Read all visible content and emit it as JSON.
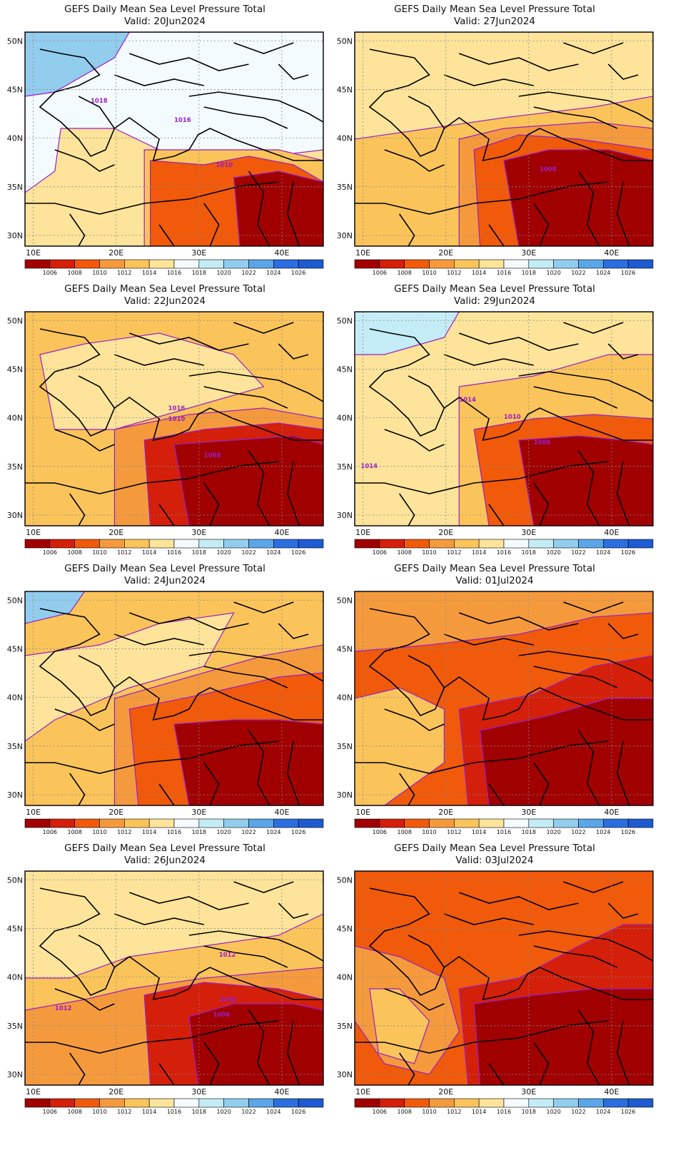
{
  "colorbar": {
    "labels": [
      "1006",
      "1008",
      "1010",
      "1012",
      "1014",
      "1016",
      "1018",
      "1020",
      "1022",
      "1024",
      "1026"
    ],
    "colors": [
      "#a10000",
      "#d41f0a",
      "#f05a0a",
      "#f59a3c",
      "#fbc45a",
      "#fde49a",
      "#f4fbff",
      "#c4ecf6",
      "#92cdee",
      "#5aa6e8",
      "#2a6ee0",
      "#1e5ad0"
    ]
  },
  "axes": {
    "lat_labels": [
      "50N",
      "45N",
      "40N",
      "35N",
      "30N"
    ],
    "lon_labels": [
      "10E",
      "20E",
      "30E",
      "40E"
    ]
  },
  "contour_line_color": "#9a1fc8",
  "panels": [
    {
      "title": "GEFS Daily Mean Sea Level Pressure Total",
      "valid": "Valid: 20Jun2024",
      "labels": [
        {
          "text": "1018"
        },
        {
          "text": "1016"
        },
        {
          "text": "1010"
        }
      ]
    },
    {
      "title": "GEFS Daily Mean Sea Level Pressure Total",
      "valid": "Valid: 27Jun2024",
      "labels": [
        {
          "text": "1008"
        }
      ]
    },
    {
      "title": "GEFS Daily Mean Sea Level Pressure Total",
      "valid": "Valid: 22Jun2024",
      "labels": [
        {
          "text": "1016"
        },
        {
          "text": "1010"
        },
        {
          "text": "1008"
        }
      ]
    },
    {
      "title": "GEFS Daily Mean Sea Level Pressure Total",
      "valid": "Valid: 29Jun2024",
      "labels": [
        {
          "text": "1014"
        },
        {
          "text": "1010"
        },
        {
          "text": "1008"
        },
        {
          "text": "1014"
        }
      ]
    },
    {
      "title": "GEFS Daily Mean Sea Level Pressure Total",
      "valid": "Valid: 24Jun2024",
      "labels": []
    },
    {
      "title": "GEFS Daily Mean Sea Level Pressure Total",
      "valid": "Valid: 01Jul2024",
      "labels": []
    },
    {
      "title": "GEFS Daily Mean Sea Level Pressure Total",
      "valid": "Valid: 26Jun2024",
      "labels": [
        {
          "text": "1012"
        },
        {
          "text": "1012"
        },
        {
          "text": "1008"
        },
        {
          "text": "1006"
        }
      ]
    },
    {
      "title": "GEFS Daily Mean Sea Level Pressure Total",
      "valid": "Valid: 03Jul2024",
      "labels": []
    }
  ]
}
